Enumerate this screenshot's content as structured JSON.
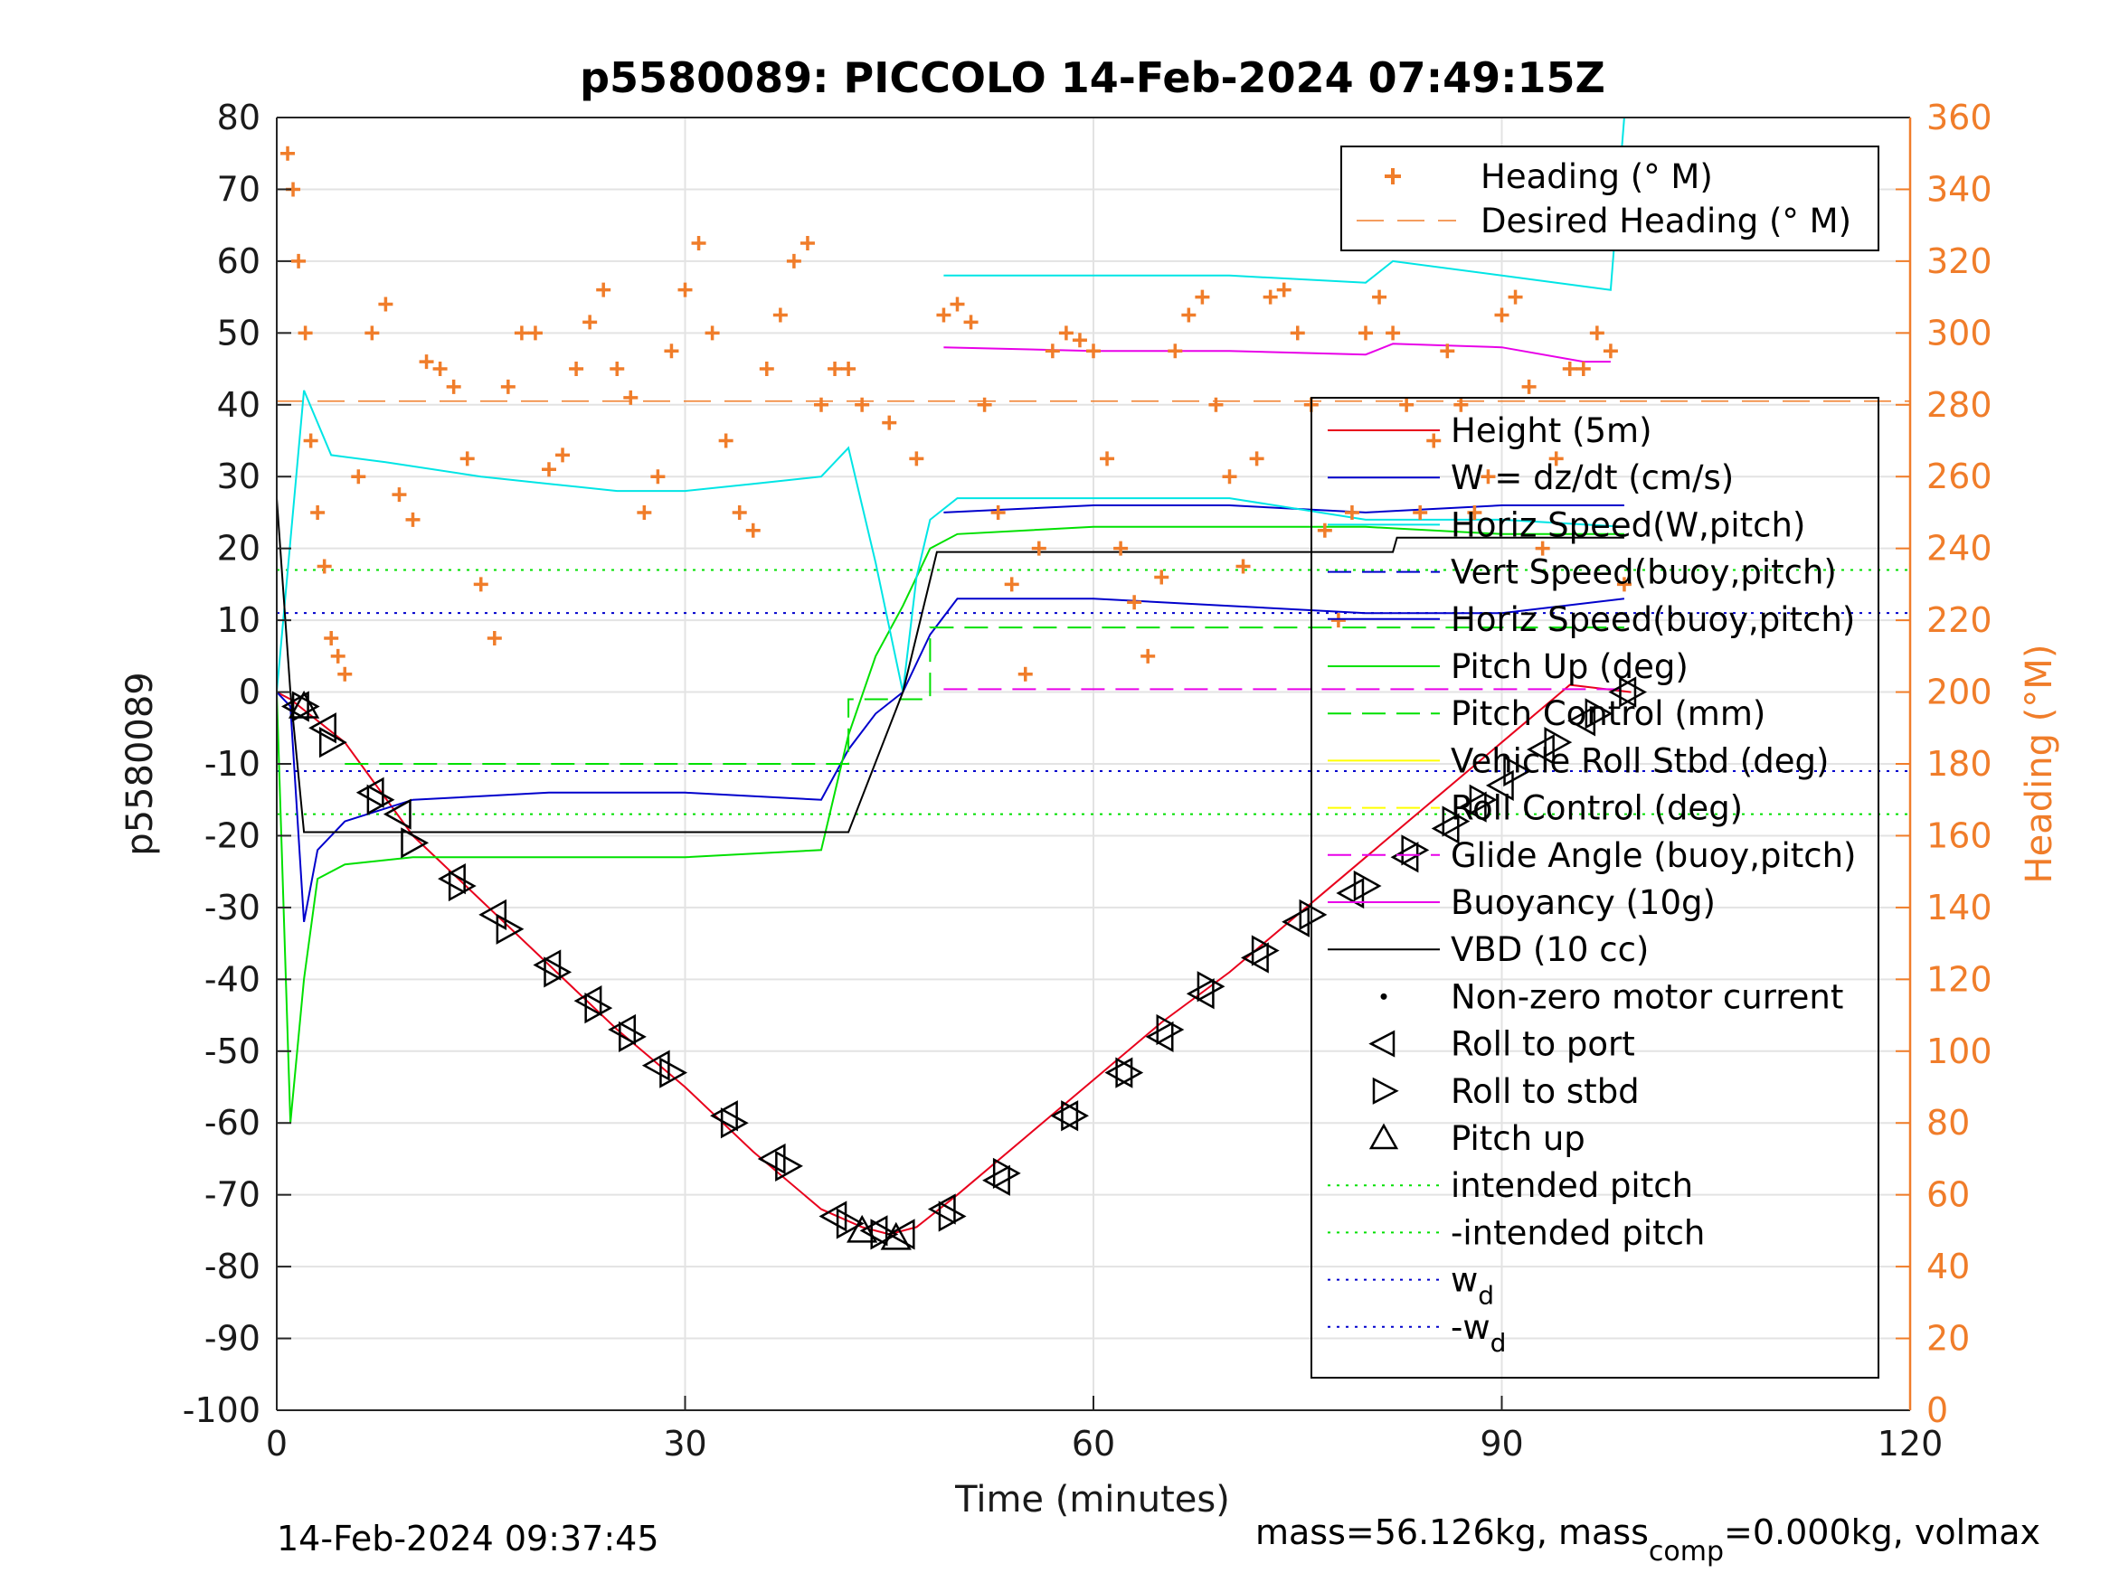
{
  "chart_data": {
    "type": "line",
    "title": "p5580089: PICCOLO 14-Feb-2024 07:49:15Z",
    "xlabel": "Time (minutes)",
    "ylabel": "p5580089",
    "y2label": "Heading (°M)",
    "xlim": [
      0,
      120
    ],
    "ylim": [
      -100,
      80
    ],
    "y2lim": [
      0,
      360
    ],
    "xticks": [
      "0",
      "30",
      "60",
      "90",
      "120"
    ],
    "yticks": [
      "80",
      "70",
      "60",
      "50",
      "40",
      "30",
      "20",
      "10",
      "0",
      "-10",
      "-20",
      "-30",
      "-40",
      "-50",
      "-60",
      "-70",
      "-80",
      "-90",
      "-100"
    ],
    "y2ticks": [
      "360",
      "340",
      "320",
      "300",
      "280",
      "260",
      "240",
      "220",
      "200",
      "180",
      "160",
      "140",
      "120",
      "100",
      "80",
      "60",
      "40",
      "20",
      "0"
    ],
    "grid": true,
    "legend_top": [
      "Heading (° M)",
      "Desired Heading (° M)"
    ],
    "legend_main": [
      "Height (5m)",
      "W = dz/dt (cm/s)",
      "Horiz Speed(W,pitch)",
      "Vert Speed(buoy,pitch)",
      "Horiz Speed(buoy,pitch)",
      "Pitch Up (deg)",
      "Pitch Control (mm)",
      "Vehicle Roll Stbd (deg)",
      "Roll Control (deg)",
      "Glide Angle (buoy,pitch)",
      "Buoyancy (10g)",
      "VBD (10 cc)",
      "Non-zero motor current",
      "Roll to port",
      "Roll to stbd",
      "Pitch up",
      "intended pitch",
      "-intended pitch",
      "w_d",
      "-w_d"
    ],
    "series": [
      {
        "name": "Height (5m)",
        "color": "#e8001c",
        "x": [
          0,
          1,
          5,
          10,
          15,
          20,
          25,
          30,
          35,
          40,
          43,
          45,
          47,
          50,
          55,
          60,
          65,
          70,
          75,
          80,
          85,
          90,
          95,
          99.5
        ],
        "y": [
          0,
          -1,
          -7,
          -20,
          -29,
          -38,
          -47,
          -55,
          -64,
          -72,
          -74.5,
          -75.5,
          -74.5,
          -70,
          -62,
          -54,
          -46,
          -39,
          -31,
          -23,
          -15,
          -7,
          1,
          0
        ]
      },
      {
        "name": "W = dz/dt (cm/s)",
        "color": "#0000cc",
        "x": [
          0,
          1,
          2,
          3,
          5,
          10,
          20,
          30,
          40,
          42,
          44,
          46,
          48,
          50,
          60,
          70,
          80,
          90,
          99
        ],
        "y": [
          0,
          -2,
          -32,
          -22,
          -18,
          -15,
          -14,
          -14,
          -15,
          -8,
          -3,
          0,
          8,
          13,
          13,
          12,
          11,
          11,
          13
        ]
      },
      {
        "name": "Vert Speed(buoy,pitch)",
        "color": "#0000cc",
        "x": [
          49,
          60,
          70,
          80,
          90,
          99
        ],
        "y": [
          25,
          26,
          26,
          25,
          26,
          26
        ]
      },
      {
        "name": "Pitch Up (deg)",
        "color": "#00e000",
        "x": [
          0,
          1,
          2,
          3,
          5,
          10,
          20,
          30,
          40,
          42,
          44,
          46,
          48,
          50,
          60,
          70,
          80,
          90,
          99
        ],
        "y": [
          0,
          -60,
          -40,
          -26,
          -24,
          -23,
          -23,
          -23,
          -22,
          -6,
          5,
          12,
          20,
          22,
          23,
          23,
          23,
          22,
          22
        ]
      },
      {
        "name": "Pitch Control (mm)",
        "color": "#00e000",
        "x": [
          5,
          42,
          42,
          48,
          48,
          99
        ],
        "y": [
          -10,
          -10,
          -1,
          -1,
          9,
          9
        ]
      },
      {
        "name": "Horiz Speed(W,pitch)",
        "color": "#00e5e5",
        "x": [
          0,
          2,
          4,
          8,
          15,
          20,
          25,
          30,
          35,
          40,
          42,
          44,
          46,
          47,
          48,
          50,
          60,
          70,
          80,
          90,
          99
        ],
        "y": [
          0,
          42,
          33,
          32,
          30,
          29,
          28,
          28,
          29,
          30,
          34,
          18,
          0,
          16,
          24,
          27,
          27,
          27,
          24,
          24,
          23
        ]
      },
      {
        "name": "Cyan upper",
        "color": "#00e5e5",
        "x": [
          49,
          60,
          70,
          80,
          82,
          90,
          98,
          99
        ],
        "y": [
          58,
          58,
          58,
          57,
          60,
          58,
          56,
          80
        ]
      },
      {
        "name": "Buoyancy (10g)",
        "color": "#e800e8",
        "x": [
          49,
          60,
          70,
          80,
          82,
          90,
          96,
          98
        ],
        "y": [
          48,
          47.5,
          47.5,
          47,
          48.5,
          48,
          46,
          46
        ]
      },
      {
        "name": "Glide Angle (buoy,pitch)",
        "color": "#e800e8",
        "x": [
          49,
          99
        ],
        "y": [
          0.4,
          0.4
        ]
      },
      {
        "name": "VBD (10 cc)",
        "color": "#000000",
        "x": [
          0,
          1,
          2,
          42,
          46,
          48.5,
          82,
          82.3,
          99
        ],
        "y": [
          27,
          0,
          -19.5,
          -19.5,
          0,
          19.5,
          19.5,
          21.5,
          21.5
        ]
      }
    ],
    "reference_lines": [
      {
        "name": "intended pitch",
        "color": "#00e000",
        "y": 17
      },
      {
        "name": "-intended pitch",
        "color": "#00e000",
        "y": -17
      },
      {
        "name": "w_d",
        "color": "#0000cc",
        "y": 11
      },
      {
        "name": "-w_d",
        "color": "#0000cc",
        "y": -11
      }
    ],
    "desired_heading_deg": 281,
    "heading_series": {
      "name": "Heading (° M)",
      "color": "#f07d2a",
      "x": [
        0.8,
        1.2,
        1.6,
        2.1,
        2.5,
        3,
        3.5,
        4,
        4.5,
        5,
        6,
        7,
        8,
        9,
        10,
        11,
        12,
        13,
        14,
        15,
        16,
        17,
        18,
        19,
        20,
        21,
        22,
        23,
        24,
        25,
        26,
        27,
        28,
        29,
        30,
        31,
        32,
        33,
        34,
        35,
        36,
        37,
        38,
        39,
        40,
        41,
        42,
        43,
        45,
        47,
        49,
        50,
        51,
        52,
        53,
        54,
        55,
        56,
        57,
        58,
        59,
        60,
        61,
        62,
        63,
        64,
        65,
        66,
        67,
        68,
        69,
        70,
        71,
        72,
        73,
        74,
        75,
        76,
        77,
        78,
        79,
        80,
        81,
        82,
        83,
        84,
        85,
        86,
        87,
        88,
        89,
        90,
        91,
        92,
        93,
        94,
        95,
        96,
        97,
        98,
        99
      ],
      "y": [
        350,
        340,
        320,
        300,
        270,
        250,
        235,
        215,
        210,
        205,
        260,
        300,
        308,
        255,
        248,
        292,
        290,
        285,
        265,
        230,
        215,
        285,
        300,
        300,
        262,
        266,
        290,
        303,
        312,
        290,
        282,
        250,
        260,
        295,
        312,
        325,
        300,
        270,
        250,
        245,
        290,
        305,
        320,
        325,
        280,
        290,
        290,
        280,
        275,
        265,
        305,
        308,
        303,
        280,
        250,
        230,
        205,
        240,
        295,
        300,
        298,
        295,
        265,
        240,
        225,
        210,
        232,
        295,
        305,
        310,
        280,
        260,
        235,
        265,
        310,
        312,
        300,
        280,
        245,
        220,
        250,
        300,
        310,
        300,
        280,
        250,
        270,
        295,
        280,
        250,
        260,
        305,
        310,
        285,
        240,
        265,
        290,
        290,
        300,
        295,
        230
      ]
    },
    "motor_markers": {
      "roll_to_port": [
        [
          1.5,
          -2
        ],
        [
          3.5,
          -5
        ],
        [
          7,
          -14
        ],
        [
          9,
          -17
        ],
        [
          13,
          -26
        ],
        [
          16,
          -31
        ],
        [
          20,
          -38
        ],
        [
          23,
          -43
        ],
        [
          25.5,
          -47
        ],
        [
          28,
          -52
        ],
        [
          33,
          -59
        ],
        [
          36.5,
          -65
        ],
        [
          41,
          -73
        ],
        [
          44,
          -75
        ],
        [
          46,
          -75.5
        ],
        [
          49,
          -72
        ],
        [
          53,
          -68
        ],
        [
          58,
          -59
        ],
        [
          62,
          -53
        ],
        [
          65,
          -48
        ],
        [
          68,
          -42
        ],
        [
          72,
          -37
        ],
        [
          75,
          -32
        ],
        [
          79,
          -28
        ],
        [
          83,
          -23
        ],
        [
          86,
          -19
        ],
        [
          88,
          -16
        ],
        [
          90,
          -13
        ],
        [
          93,
          -8
        ],
        [
          96,
          -4
        ],
        [
          99,
          0
        ]
      ],
      "roll_to_stbd": [
        [
          2,
          -2
        ],
        [
          4,
          -7
        ],
        [
          7.5,
          -15
        ],
        [
          10,
          -21
        ],
        [
          13.5,
          -27
        ],
        [
          17,
          -33
        ],
        [
          20.5,
          -39
        ],
        [
          23.5,
          -44
        ],
        [
          26,
          -48
        ],
        [
          29,
          -53
        ],
        [
          33.5,
          -60
        ],
        [
          37.5,
          -66
        ],
        [
          42,
          -74
        ],
        [
          44.5,
          -75.5
        ],
        [
          49.5,
          -73
        ],
        [
          53.5,
          -67
        ],
        [
          58.5,
          -59
        ],
        [
          62.5,
          -53
        ],
        [
          65.5,
          -47
        ],
        [
          68.5,
          -41
        ],
        [
          72.5,
          -36
        ],
        [
          76,
          -31
        ],
        [
          80,
          -27
        ],
        [
          83.5,
          -22
        ],
        [
          86.5,
          -18
        ],
        [
          88.5,
          -15
        ],
        [
          91,
          -11
        ],
        [
          94,
          -7
        ],
        [
          97,
          -3
        ],
        [
          99.5,
          0
        ]
      ],
      "pitch_up": [
        [
          2,
          -2
        ],
        [
          43,
          -75
        ],
        [
          45.5,
          -76
        ]
      ]
    },
    "footer_left": "14-Feb-2024 09:37:45",
    "footer_right_pre": "mass=56.126kg, mass",
    "footer_right_sub": "comp",
    "footer_right_post": "=0.000kg, volmax"
  }
}
